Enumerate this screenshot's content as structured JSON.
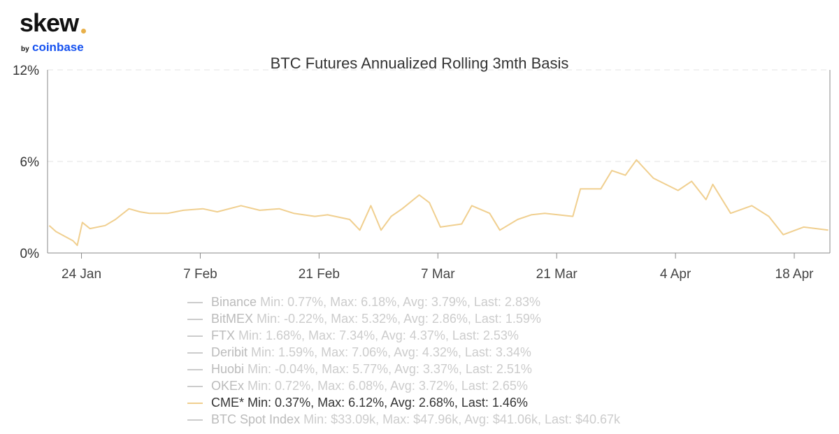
{
  "logo": {
    "brand": "skew",
    "by": "by",
    "partner": "coinbase"
  },
  "chart_data": {
    "type": "line",
    "title": "BTC Futures Annualized Rolling 3mth Basis",
    "x_unit": "days since 20 Jan",
    "xlim": [
      0,
      92.2
    ],
    "ylim": [
      0,
      12
    ],
    "yticks": [
      {
        "v": 0,
        "label": "0%"
      },
      {
        "v": 6,
        "label": "6%"
      },
      {
        "v": 12,
        "label": "12%"
      }
    ],
    "xticks": [
      {
        "d": 4,
        "label": "24 Jan"
      },
      {
        "d": 18,
        "label": "7 Feb"
      },
      {
        "d": 32,
        "label": "21 Feb"
      },
      {
        "d": 46,
        "label": "7 Mar"
      },
      {
        "d": 60,
        "label": "21 Mar"
      },
      {
        "d": 74,
        "label": "4 Apr"
      },
      {
        "d": 88,
        "label": "18 Apr"
      }
    ],
    "series": [
      {
        "name": "CME*",
        "color": "#f0cf8f",
        "x": [
          0.2,
          1,
          2,
          3,
          3.5,
          4.1,
          5,
          6.8,
          8,
          9.6,
          10.9,
          12,
          14.2,
          16,
          18.3,
          20,
          22.8,
          25,
          27.3,
          29,
          31.5,
          33,
          35.6,
          36.8,
          38.1,
          39.3,
          40.5,
          41.8,
          43.8,
          45,
          46.3,
          48.8,
          50,
          52.1,
          53.3,
          55.4,
          57,
          58.6,
          61.9,
          62.8,
          65.2,
          66.5,
          68.1,
          69.4,
          71.4,
          74.3,
          75.9,
          77.6,
          78.4,
          80.5,
          83,
          85,
          86.7,
          89.1,
          92
        ],
        "y": [
          1.8,
          1.4,
          1.1,
          0.8,
          0.5,
          2.0,
          1.6,
          1.8,
          2.2,
          2.9,
          2.7,
          2.6,
          2.6,
          2.8,
          2.9,
          2.7,
          3.1,
          2.8,
          2.9,
          2.6,
          2.4,
          2.5,
          2.2,
          1.5,
          3.1,
          1.5,
          2.4,
          2.9,
          3.8,
          3.3,
          1.7,
          1.9,
          3.1,
          2.6,
          1.5,
          2.2,
          2.5,
          2.6,
          2.4,
          4.2,
          4.2,
          5.4,
          5.1,
          6.1,
          4.9,
          4.1,
          4.7,
          3.5,
          4.5,
          2.6,
          3.1,
          2.4,
          1.2,
          1.7,
          1.5
        ]
      }
    ]
  },
  "legend": [
    {
      "name": "Binance",
      "stats": "Min: 0.77%, Max: 6.18%, Avg: 3.79%, Last: 2.83%",
      "active": false
    },
    {
      "name": "BitMEX",
      "stats": "Min: -0.22%, Max: 5.32%, Avg: 2.86%, Last: 1.59%",
      "active": false
    },
    {
      "name": "FTX",
      "stats": "Min: 1.68%, Max: 7.34%, Avg: 4.37%, Last: 2.53%",
      "active": false
    },
    {
      "name": "Deribit",
      "stats": "Min: 1.59%, Max: 7.06%, Avg: 4.32%, Last: 3.34%",
      "active": false
    },
    {
      "name": "Huobi",
      "stats": "Min: -0.04%, Max: 5.77%, Avg: 3.37%, Last: 2.51%",
      "active": false
    },
    {
      "name": "OKEx",
      "stats": "Min: 0.72%, Max: 6.08%, Avg: 3.72%, Last: 2.65%",
      "active": false
    },
    {
      "name": "CME*",
      "stats": "Min: 0.37%, Max: 6.12%, Avg: 2.68%, Last: 1.46%",
      "active": true,
      "color": "#f0cf8f"
    },
    {
      "name": "BTC Spot Index",
      "stats": "Min: $33.09k, Max: $47.96k, Avg: $41.06k, Last: $40.67k",
      "active": false
    }
  ]
}
